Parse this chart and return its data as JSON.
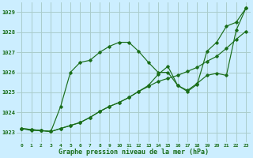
{
  "title": "Graphe pression niveau de la mer (hPa)",
  "bg_color": "#cceeff",
  "grid_color": "#aacccc",
  "line_color": "#1a6e1a",
  "xlim": [
    -0.5,
    23.5
  ],
  "ylim": [
    1022.5,
    1029.5
  ],
  "yticks": [
    1023,
    1024,
    1025,
    1026,
    1027,
    1028,
    1029
  ],
  "xticks": [
    0,
    1,
    2,
    3,
    4,
    5,
    6,
    7,
    8,
    9,
    10,
    11,
    12,
    13,
    14,
    15,
    16,
    17,
    18,
    19,
    20,
    21,
    22,
    23
  ],
  "series": [
    [
      1023.2,
      1023.1,
      1023.1,
      1023.05,
      1024.3,
      1026.0,
      1026.5,
      1026.6,
      1027.0,
      1027.3,
      1027.5,
      1027.5,
      1027.05,
      1026.5,
      1026.0,
      1026.0,
      1025.35,
      1025.05,
      1025.4,
      1027.05,
      1027.5,
      1028.3,
      1028.5,
      1029.2
    ],
    [
      1023.2,
      1023.15,
      1023.1,
      1023.05,
      1023.2,
      1023.35,
      1023.5,
      1023.75,
      1024.05,
      1024.3,
      1024.5,
      1024.75,
      1025.05,
      1025.3,
      1025.55,
      1025.7,
      1025.85,
      1026.05,
      1026.25,
      1026.55,
      1026.8,
      1027.2,
      1027.65,
      1028.05
    ],
    [
      1023.2,
      1023.15,
      1023.1,
      1023.05,
      1023.2,
      1023.35,
      1023.5,
      1023.75,
      1024.05,
      1024.3,
      1024.5,
      1024.75,
      1025.05,
      1025.35,
      1025.9,
      1026.3,
      1025.35,
      1025.1,
      1025.45,
      1025.85,
      1025.95,
      1025.85,
      1028.1,
      1029.2
    ]
  ]
}
